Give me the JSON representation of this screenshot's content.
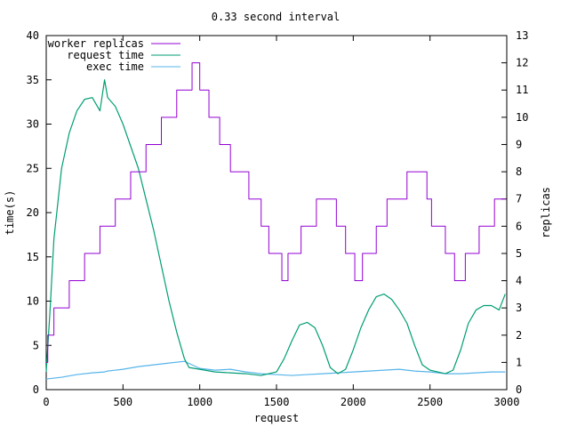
{
  "chart_data": {
    "type": "line",
    "title": "0.33 second interval",
    "xlabel": "request",
    "ylabel": "time(s)",
    "y2label": "replicas",
    "xlim": [
      0,
      3000
    ],
    "ylim": [
      0,
      40
    ],
    "y2lim": [
      0,
      13
    ],
    "xticks": [
      0,
      500,
      1000,
      1500,
      2000,
      2500,
      3000
    ],
    "yticks": [
      0,
      5,
      10,
      15,
      20,
      25,
      30,
      35,
      40
    ],
    "y2ticks": [
      0,
      1,
      2,
      3,
      4,
      5,
      6,
      7,
      8,
      9,
      10,
      11,
      12,
      13
    ],
    "grid": false,
    "legend_position": "top-left",
    "colors": {
      "worker_replicas": "#9400d3",
      "request_time": "#009e73",
      "exec_time": "#56b4e9"
    },
    "series": [
      {
        "name": "worker replicas",
        "axis": "y2",
        "step": true,
        "points": [
          [
            0,
            1
          ],
          [
            10,
            2
          ],
          [
            50,
            3
          ],
          [
            150,
            4
          ],
          [
            250,
            5
          ],
          [
            350,
            6
          ],
          [
            450,
            7
          ],
          [
            550,
            8
          ],
          [
            650,
            9
          ],
          [
            750,
            10
          ],
          [
            850,
            11
          ],
          [
            950,
            12
          ],
          [
            1000,
            11
          ],
          [
            1060,
            10
          ],
          [
            1130,
            9
          ],
          [
            1200,
            8
          ],
          [
            1320,
            7
          ],
          [
            1400,
            6
          ],
          [
            1450,
            5
          ],
          [
            1535,
            4
          ],
          [
            1575,
            5
          ],
          [
            1660,
            6
          ],
          [
            1760,
            7
          ],
          [
            1890,
            6
          ],
          [
            1950,
            5
          ],
          [
            2010,
            4
          ],
          [
            2060,
            5
          ],
          [
            2150,
            6
          ],
          [
            2220,
            7
          ],
          [
            2350,
            8
          ],
          [
            2480,
            7
          ],
          [
            2510,
            6
          ],
          [
            2600,
            5
          ],
          [
            2660,
            4
          ],
          [
            2730,
            5
          ],
          [
            2820,
            6
          ],
          [
            2920,
            7
          ],
          [
            2990,
            7
          ]
        ]
      },
      {
        "name": "request time",
        "axis": "y",
        "points": [
          [
            0,
            2
          ],
          [
            25,
            9
          ],
          [
            50,
            17
          ],
          [
            100,
            25
          ],
          [
            150,
            29
          ],
          [
            200,
            31.5
          ],
          [
            250,
            32.8
          ],
          [
            300,
            33
          ],
          [
            350,
            31.5
          ],
          [
            380,
            35
          ],
          [
            400,
            33
          ],
          [
            450,
            32
          ],
          [
            500,
            30
          ],
          [
            550,
            27.5
          ],
          [
            600,
            25
          ],
          [
            650,
            21.5
          ],
          [
            700,
            18
          ],
          [
            750,
            14
          ],
          [
            800,
            10
          ],
          [
            850,
            6.5
          ],
          [
            900,
            3.5
          ],
          [
            930,
            2.5
          ],
          [
            1000,
            2.3
          ],
          [
            1100,
            2
          ],
          [
            1200,
            1.9
          ],
          [
            1300,
            1.8
          ],
          [
            1400,
            1.6
          ],
          [
            1500,
            2
          ],
          [
            1550,
            3.5
          ],
          [
            1600,
            5.5
          ],
          [
            1650,
            7.3
          ],
          [
            1700,
            7.6
          ],
          [
            1750,
            7
          ],
          [
            1800,
            5
          ],
          [
            1850,
            2.5
          ],
          [
            1900,
            1.8
          ],
          [
            1950,
            2.3
          ],
          [
            2000,
            4.5
          ],
          [
            2050,
            7
          ],
          [
            2100,
            9
          ],
          [
            2150,
            10.5
          ],
          [
            2200,
            10.8
          ],
          [
            2250,
            10.2
          ],
          [
            2300,
            9
          ],
          [
            2350,
            7.5
          ],
          [
            2400,
            5
          ],
          [
            2450,
            2.8
          ],
          [
            2500,
            2.2
          ],
          [
            2550,
            2
          ],
          [
            2600,
            1.8
          ],
          [
            2650,
            2.2
          ],
          [
            2700,
            4.5
          ],
          [
            2750,
            7.5
          ],
          [
            2800,
            9
          ],
          [
            2850,
            9.5
          ],
          [
            2900,
            9.5
          ],
          [
            2950,
            9
          ],
          [
            2990,
            10.8
          ]
        ]
      },
      {
        "name": "exec time",
        "axis": "y",
        "points": [
          [
            0,
            1.2
          ],
          [
            100,
            1.4
          ],
          [
            200,
            1.7
          ],
          [
            300,
            1.9
          ],
          [
            380,
            2
          ],
          [
            400,
            2.1
          ],
          [
            500,
            2.3
          ],
          [
            600,
            2.6
          ],
          [
            700,
            2.8
          ],
          [
            800,
            3
          ],
          [
            900,
            3.2
          ],
          [
            950,
            2.8
          ],
          [
            1000,
            2.4
          ],
          [
            1100,
            2.2
          ],
          [
            1200,
            2.3
          ],
          [
            1300,
            2
          ],
          [
            1400,
            1.8
          ],
          [
            1500,
            1.7
          ],
          [
            1600,
            1.6
          ],
          [
            1700,
            1.7
          ],
          [
            1800,
            1.8
          ],
          [
            1900,
            1.9
          ],
          [
            2000,
            2
          ],
          [
            2100,
            2.1
          ],
          [
            2200,
            2.2
          ],
          [
            2300,
            2.3
          ],
          [
            2400,
            2.1
          ],
          [
            2500,
            2
          ],
          [
            2600,
            1.8
          ],
          [
            2700,
            1.8
          ],
          [
            2800,
            1.9
          ],
          [
            2900,
            2
          ],
          [
            2990,
            2
          ]
        ]
      }
    ]
  }
}
